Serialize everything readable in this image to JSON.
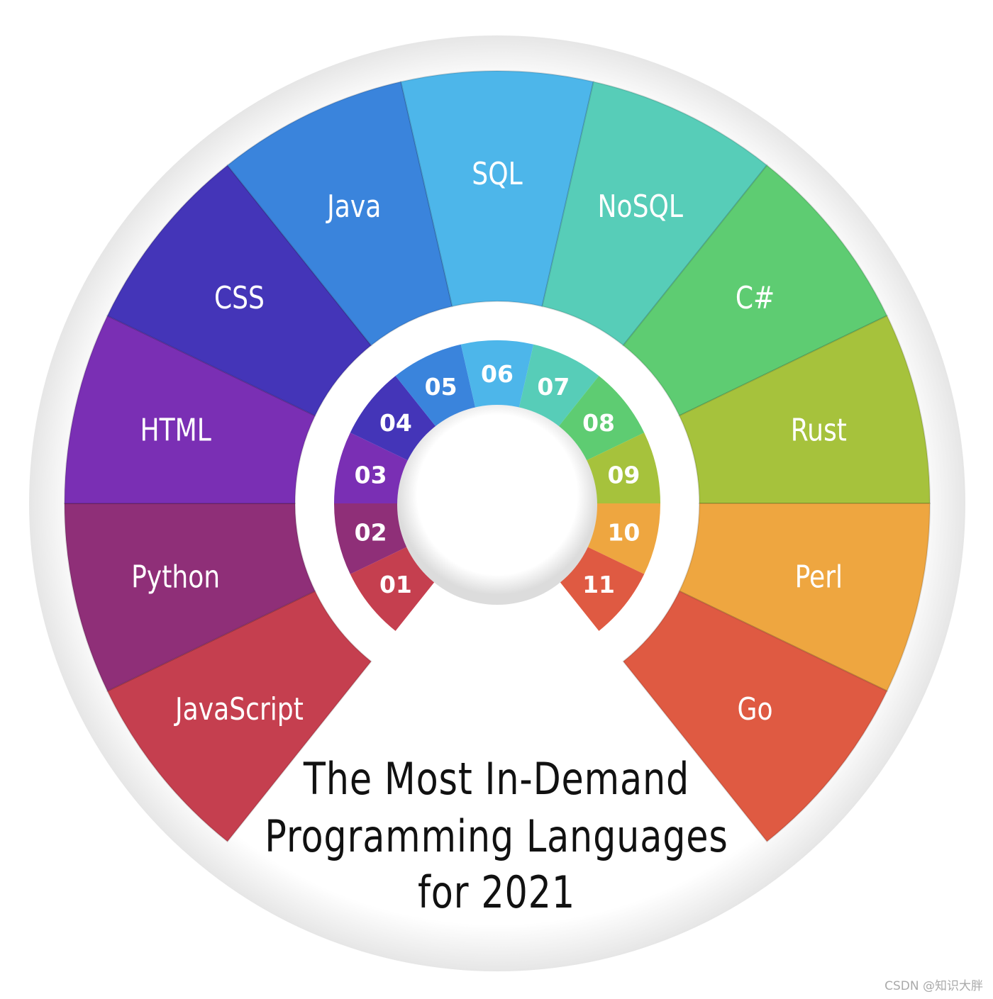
{
  "title_lines": [
    "The Most In-Demand",
    "Programming Languages",
    "for 2021"
  ],
  "segments": [
    {
      "number": "01",
      "label": "JavaScript",
      "color": "#c53f4f"
    },
    {
      "number": "02",
      "label": "Python",
      "color": "#8f2f78"
    },
    {
      "number": "03",
      "label": "HTML",
      "color": "#7a2fb4"
    },
    {
      "number": "04",
      "label": "CSS",
      "color": "#4435b8"
    },
    {
      "number": "05",
      "label": "Java",
      "color": "#3a84dc"
    },
    {
      "number": "06",
      "label": "SQL",
      "color": "#4db6ea"
    },
    {
      "number": "07",
      "label": "NoSQL",
      "color": "#57cdb8"
    },
    {
      "number": "08",
      "label": "C#",
      "color": "#5ecc72"
    },
    {
      "number": "09",
      "label": "Rust",
      "color": "#a6c23c"
    },
    {
      "number": "10",
      "label": "Perl",
      "color": "#eea640"
    },
    {
      "number": "11",
      "label": "Go",
      "color": "#df5a42"
    }
  ],
  "watermark": "CSDN @知识大胖"
}
